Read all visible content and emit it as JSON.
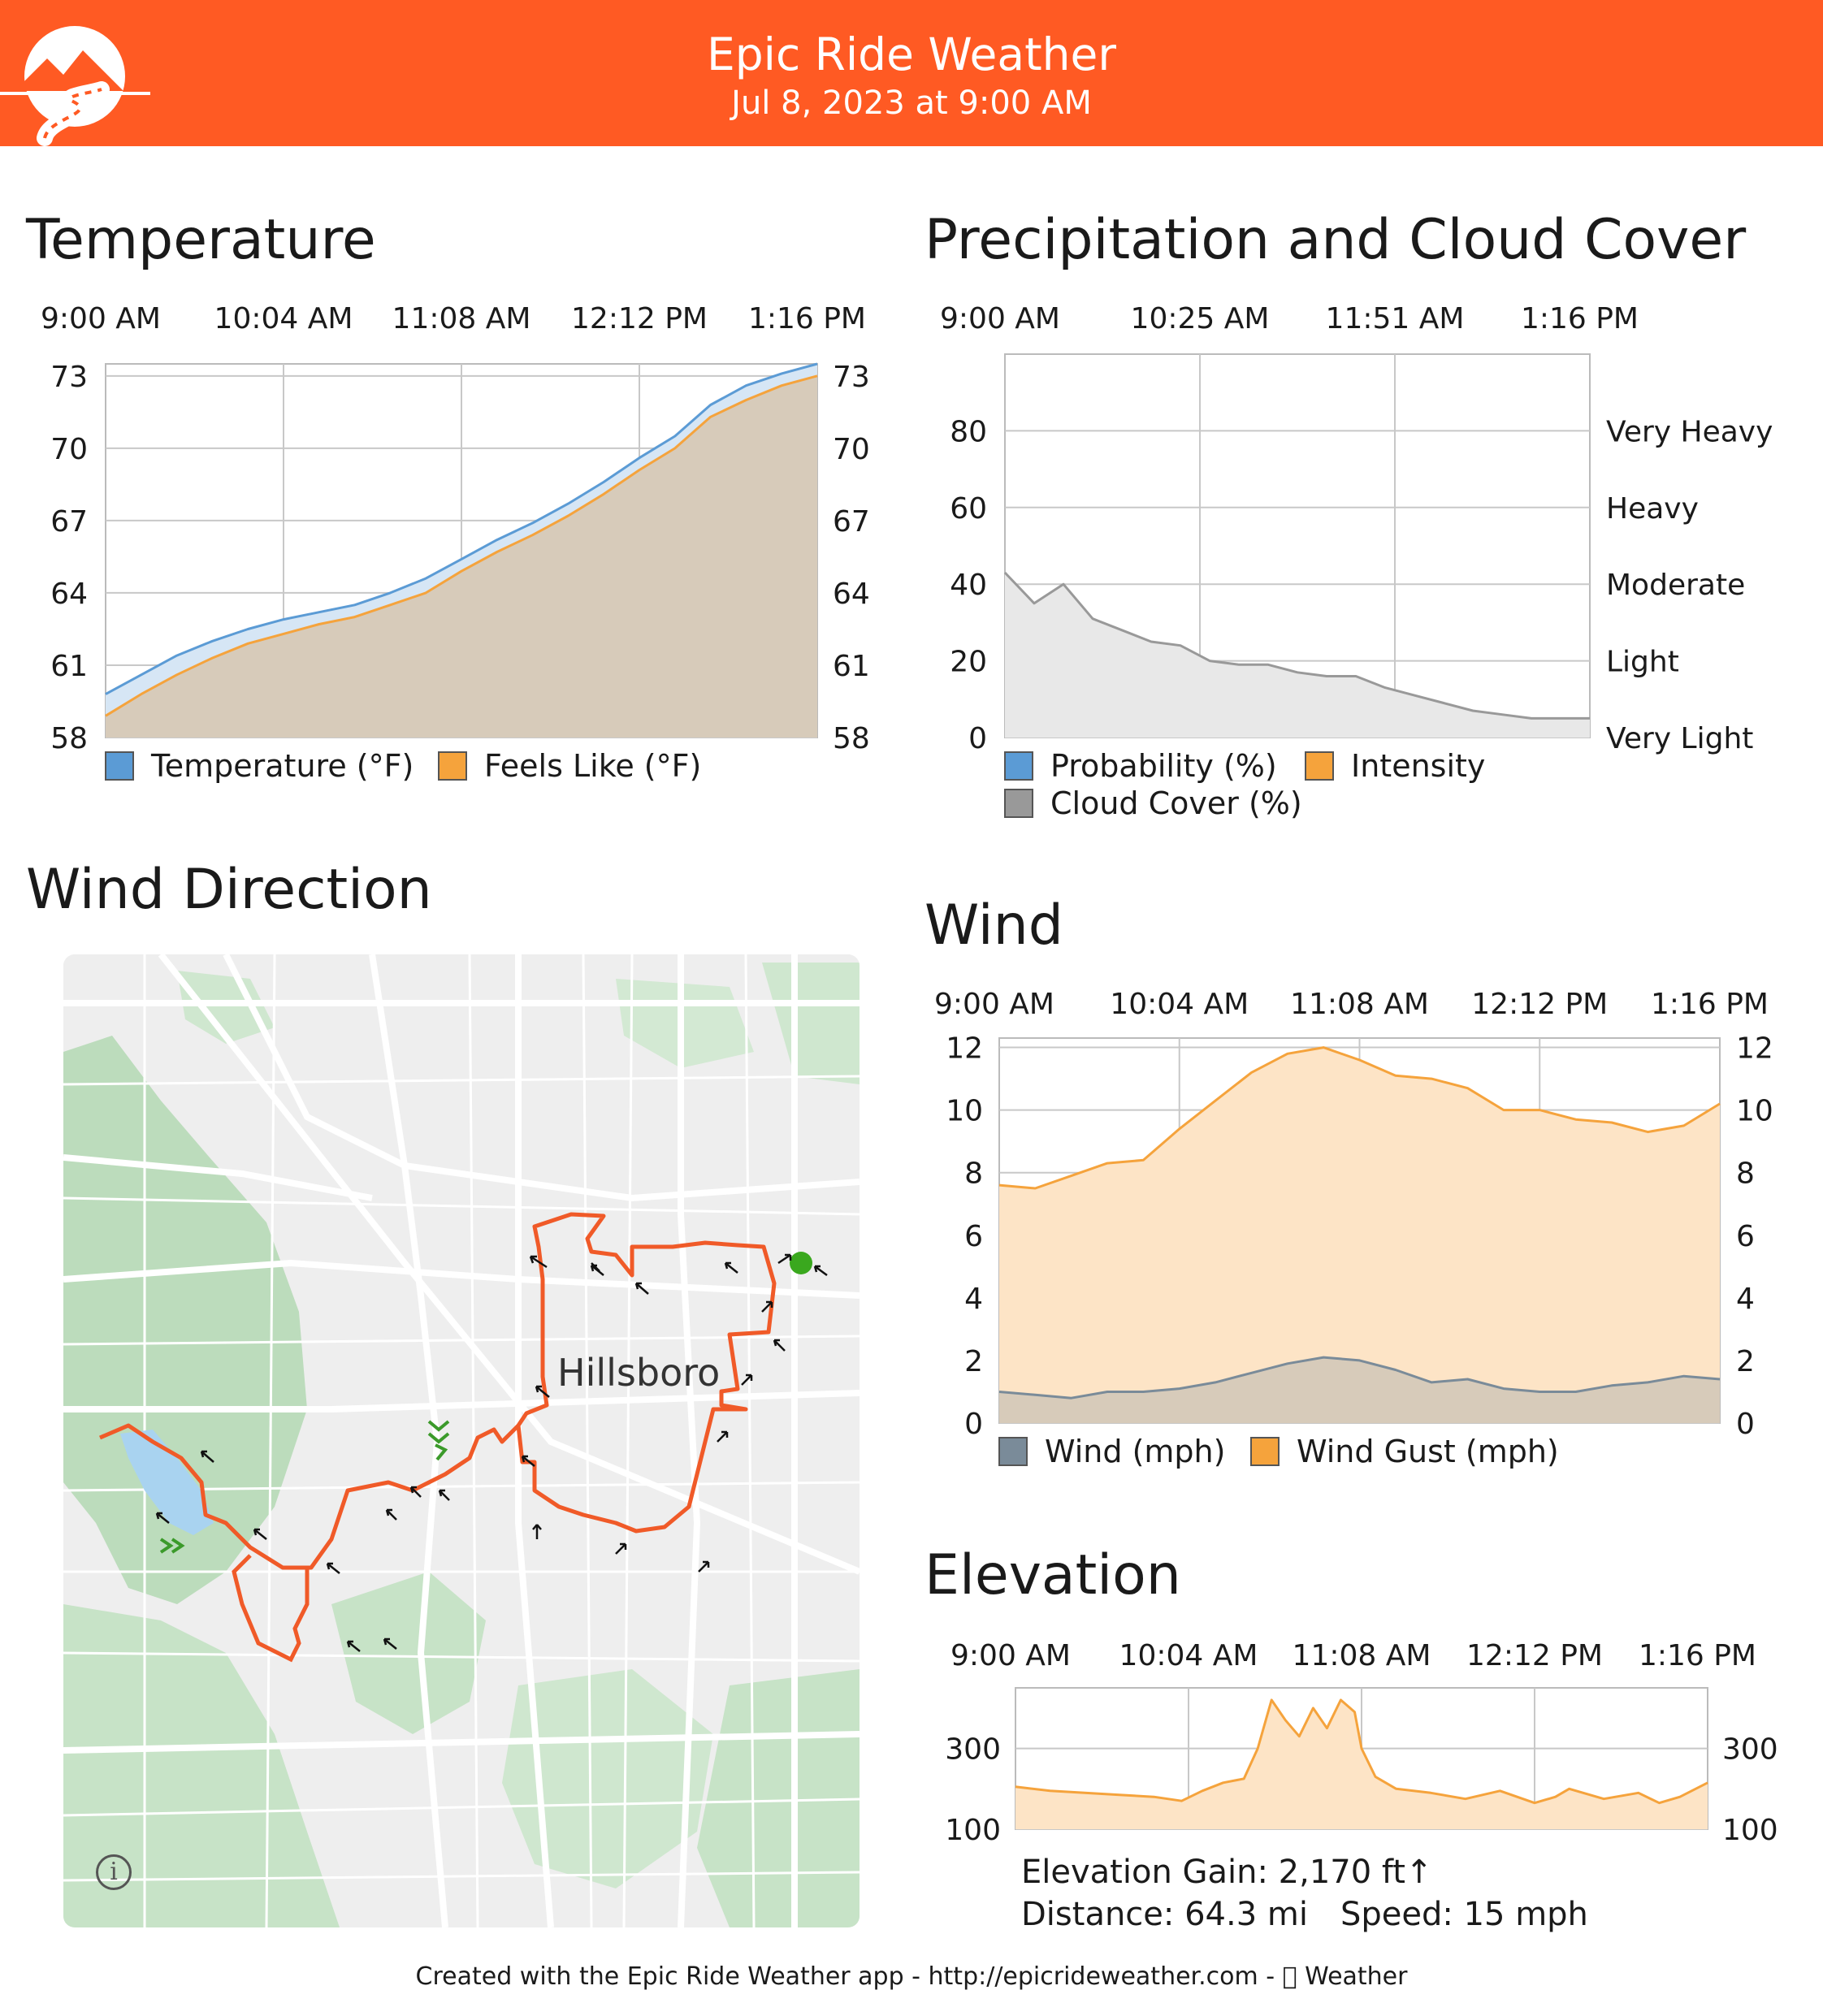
{
  "header": {
    "title": "Epic Ride Weather",
    "subtitle": "Jul 8, 2023 at 9:00 AM",
    "logo_icon": "mountain-road-logo-icon",
    "color": "#ff5a23"
  },
  "sections": {
    "temperature": "Temperature",
    "precipitation": "Precipitation and Cloud Cover",
    "wind_direction": "Wind Direction",
    "wind": "Wind",
    "elevation": "Elevation"
  },
  "map": {
    "city_label": "Hillsboro",
    "info_icon": "info-icon"
  },
  "elevation_info": {
    "gain": "Elevation Gain: 2,170 ft↑",
    "distance": "Distance: 64.3 mi",
    "speed": "Speed: 15 mph"
  },
  "footer": "Created with the Epic Ride Weather app - http://epicrideweather.com -  Weather",
  "chart_data": [
    {
      "id": "temperature",
      "type": "area",
      "xticks": [
        "9:00 AM",
        "10:04 AM",
        "11:08 AM",
        "12:12 PM",
        "1:16 PM"
      ],
      "yticks": [
        73,
        70,
        67,
        64,
        61,
        58
      ],
      "ylim": [
        58,
        73.5
      ],
      "series": [
        {
          "name": "Temperature (°F)",
          "color": "#5b9bd5",
          "fill": "#d6e6f5",
          "x": [
            0,
            0.05,
            0.1,
            0.15,
            0.2,
            0.25,
            0.3,
            0.35,
            0.4,
            0.45,
            0.5,
            0.55,
            0.6,
            0.65,
            0.7,
            0.75,
            0.8,
            0.85,
            0.9,
            0.95,
            1.0
          ],
          "values": [
            59.8,
            60.6,
            61.4,
            62.0,
            62.5,
            62.9,
            63.2,
            63.5,
            64.0,
            64.6,
            65.4,
            66.2,
            66.9,
            67.7,
            68.6,
            69.6,
            70.5,
            71.8,
            72.6,
            73.1,
            73.5
          ]
        },
        {
          "name": "Feels Like (°F)",
          "color": "#f5a33c",
          "fill": "#d7cbba",
          "x": [
            0,
            0.05,
            0.1,
            0.15,
            0.2,
            0.25,
            0.3,
            0.35,
            0.4,
            0.45,
            0.5,
            0.55,
            0.6,
            0.65,
            0.7,
            0.75,
            0.8,
            0.85,
            0.9,
            0.95,
            1.0
          ],
          "values": [
            58.9,
            59.8,
            60.6,
            61.3,
            61.9,
            62.3,
            62.7,
            63.0,
            63.5,
            64.0,
            64.9,
            65.7,
            66.4,
            67.2,
            68.1,
            69.1,
            70.0,
            71.3,
            72.0,
            72.6,
            73.0
          ]
        }
      ]
    },
    {
      "id": "precipitation",
      "type": "area",
      "xticks": [
        "9:00 AM",
        "10:25 AM",
        "11:51 AM",
        "1:16 PM"
      ],
      "yticks": [
        80,
        60,
        40,
        20,
        0
      ],
      "ylim": [
        0,
        100
      ],
      "right_labels": [
        "Very Heavy",
        "Heavy",
        "Moderate",
        "Light",
        "Very Light"
      ],
      "series": [
        {
          "name": "Probability (%)",
          "color": "#5b9bd5",
          "values": [
            0,
            0
          ]
        },
        {
          "name": "Intensity",
          "color": "#f5a33c",
          "values": [
            0,
            0
          ]
        },
        {
          "name": "Cloud Cover (%)",
          "color": "#999999",
          "fill": "#e8e8e8",
          "x": [
            0,
            0.05,
            0.1,
            0.15,
            0.2,
            0.25,
            0.3,
            0.35,
            0.4,
            0.45,
            0.5,
            0.55,
            0.6,
            0.65,
            0.7,
            0.75,
            0.8,
            0.85,
            0.9,
            0.95,
            1.0
          ],
          "values": [
            43,
            35,
            40,
            31,
            28,
            25,
            24,
            20,
            19,
            19,
            17,
            16,
            16,
            13,
            11,
            9,
            7,
            6,
            5,
            5,
            5
          ]
        }
      ]
    },
    {
      "id": "wind",
      "type": "area",
      "xticks": [
        "9:00 AM",
        "10:04 AM",
        "11:08 AM",
        "12:12 PM",
        "1:16 PM"
      ],
      "yticks": [
        12,
        10,
        8,
        6,
        4,
        2,
        0
      ],
      "ylim": [
        0,
        12.3
      ],
      "series": [
        {
          "name": "Wind (mph)",
          "color": "#7a8b99",
          "fill": "#d7cbba",
          "x": [
            0,
            0.05,
            0.1,
            0.15,
            0.2,
            0.25,
            0.3,
            0.35,
            0.4,
            0.45,
            0.5,
            0.55,
            0.6,
            0.65,
            0.7,
            0.75,
            0.8,
            0.85,
            0.9,
            0.95,
            1.0
          ],
          "values": [
            1.0,
            0.9,
            0.8,
            1.0,
            1.0,
            1.1,
            1.3,
            1.6,
            1.9,
            2.1,
            2.0,
            1.7,
            1.3,
            1.4,
            1.1,
            1.0,
            1.0,
            1.2,
            1.3,
            1.5,
            1.4
          ]
        },
        {
          "name": "Wind Gust (mph)",
          "color": "#f5a33c",
          "fill": "#fde4c6",
          "x": [
            0,
            0.05,
            0.1,
            0.15,
            0.2,
            0.25,
            0.3,
            0.35,
            0.4,
            0.45,
            0.5,
            0.55,
            0.6,
            0.65,
            0.7,
            0.75,
            0.8,
            0.85,
            0.9,
            0.95,
            1.0
          ],
          "values": [
            7.6,
            7.5,
            7.9,
            8.3,
            8.4,
            9.4,
            10.3,
            11.2,
            11.8,
            12.0,
            11.6,
            11.1,
            11.0,
            10.7,
            10.0,
            10.0,
            9.7,
            9.6,
            9.3,
            9.5,
            10.2
          ]
        }
      ]
    },
    {
      "id": "elevation",
      "type": "area",
      "xticks": [
        "9:00 AM",
        "10:04 AM",
        "11:08 AM",
        "12:12 PM",
        "1:16 PM"
      ],
      "yticks": [
        300,
        100
      ],
      "ylim": [
        100,
        450
      ],
      "series": [
        {
          "name": "Elevation",
          "color": "#f5a33c",
          "fill": "#fde4c6",
          "x": [
            0,
            0.05,
            0.1,
            0.15,
            0.2,
            0.24,
            0.27,
            0.3,
            0.33,
            0.35,
            0.37,
            0.39,
            0.41,
            0.43,
            0.45,
            0.47,
            0.49,
            0.5,
            0.52,
            0.55,
            0.6,
            0.65,
            0.7,
            0.75,
            0.78,
            0.8,
            0.85,
            0.9,
            0.93,
            0.96,
            1.0
          ],
          "values": [
            205,
            195,
            190,
            185,
            180,
            170,
            195,
            215,
            225,
            300,
            420,
            370,
            330,
            400,
            350,
            420,
            390,
            300,
            230,
            200,
            190,
            175,
            195,
            165,
            180,
            200,
            175,
            190,
            165,
            180,
            215
          ]
        }
      ]
    }
  ]
}
